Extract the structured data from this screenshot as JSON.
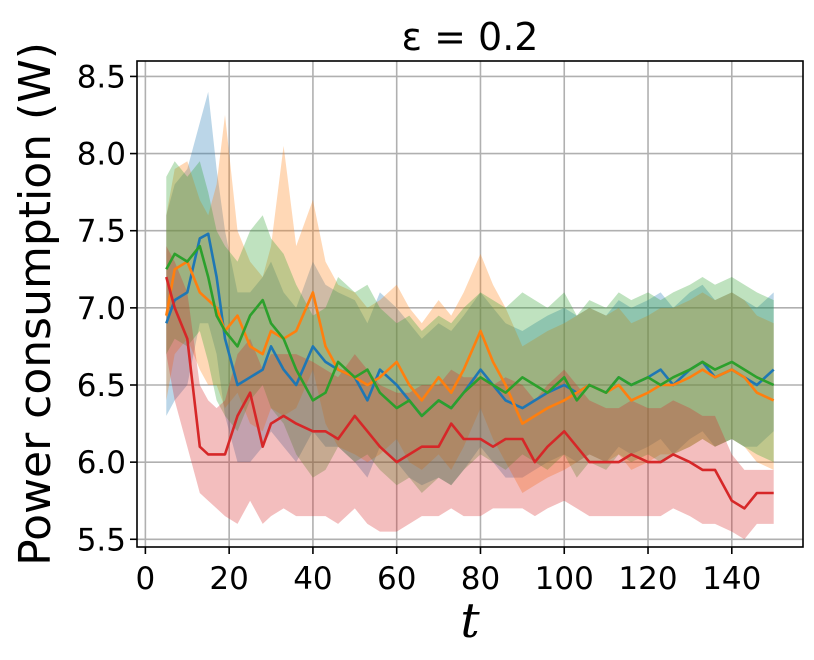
{
  "chart_data": {
    "type": "line",
    "title": "ε = 0.2",
    "xlabel": "t",
    "ylabel": "Power consumption (W)",
    "xlim": [
      -2,
      157
    ],
    "ylim": [
      5.45,
      8.6
    ],
    "xticks": [
      0,
      20,
      40,
      60,
      80,
      100,
      120,
      140
    ],
    "xtick_labels": [
      "0",
      "20",
      "40",
      "60",
      "80",
      "100",
      "120",
      "140"
    ],
    "yticks": [
      5.5,
      6.0,
      6.5,
      7.0,
      7.5,
      8.0,
      8.5
    ],
    "ytick_labels": [
      "5.5",
      "6.0",
      "6.5",
      "7.0",
      "7.5",
      "8.0",
      "8.5"
    ],
    "grid": true,
    "legend": "none",
    "shaded_bands": true,
    "band_opacity": 0.3,
    "x": [
      5,
      7,
      10,
      13,
      15,
      17,
      19,
      22,
      25,
      28,
      30,
      33,
      36,
      40,
      43,
      46,
      50,
      53,
      56,
      60,
      63,
      66,
      70,
      73,
      76,
      80,
      83,
      86,
      90,
      93,
      96,
      100,
      103,
      106,
      110,
      113,
      116,
      120,
      123,
      126,
      130,
      133,
      136,
      140,
      143,
      146,
      150
    ],
    "series": [
      {
        "color": "#1f77b4",
        "values": [
          6.9,
          7.05,
          7.1,
          7.45,
          7.48,
          7.2,
          6.8,
          6.5,
          6.55,
          6.6,
          6.75,
          6.6,
          6.5,
          6.75,
          6.65,
          6.6,
          6.55,
          6.4,
          6.6,
          6.5,
          6.4,
          6.3,
          6.4,
          6.35,
          6.45,
          6.6,
          6.5,
          6.4,
          6.35,
          6.4,
          6.45,
          6.5,
          6.45,
          6.5,
          6.45,
          6.55,
          6.5,
          6.55,
          6.6,
          6.5,
          6.6,
          6.65,
          6.55,
          6.6,
          6.55,
          6.5,
          6.6
        ],
        "lower": [
          6.3,
          6.4,
          6.5,
          6.9,
          6.9,
          6.7,
          6.3,
          6.0,
          6.0,
          6.1,
          6.2,
          6.1,
          6.0,
          6.2,
          6.1,
          6.1,
          6.0,
          5.9,
          6.1,
          6.0,
          5.9,
          5.85,
          5.9,
          5.85,
          5.95,
          6.1,
          6.0,
          5.9,
          5.9,
          5.95,
          6.0,
          6.05,
          6.0,
          6.05,
          6.0,
          6.1,
          6.05,
          6.1,
          6.15,
          6.05,
          6.15,
          6.2,
          6.1,
          6.15,
          6.1,
          6.1,
          6.2
        ],
        "upper": [
          7.6,
          7.8,
          7.9,
          8.2,
          8.4,
          7.9,
          7.5,
          7.1,
          7.1,
          7.2,
          7.3,
          7.1,
          7.0,
          7.3,
          7.15,
          7.1,
          7.05,
          6.9,
          7.1,
          7.0,
          6.9,
          6.8,
          6.9,
          6.85,
          6.95,
          7.1,
          7.0,
          6.9,
          6.85,
          6.9,
          6.95,
          7.0,
          6.95,
          7.0,
          6.95,
          7.05,
          7.0,
          7.05,
          7.1,
          7.0,
          7.1,
          7.15,
          7.05,
          7.1,
          7.05,
          7.0,
          7.1
        ]
      },
      {
        "color": "#ff7f0e",
        "values": [
          6.95,
          7.25,
          7.3,
          7.1,
          7.05,
          7.0,
          6.85,
          6.95,
          6.75,
          6.7,
          6.85,
          6.8,
          6.85,
          7.1,
          6.75,
          6.6,
          6.55,
          6.5,
          6.55,
          6.65,
          6.5,
          6.4,
          6.55,
          6.45,
          6.6,
          6.85,
          6.65,
          6.5,
          6.25,
          6.3,
          6.35,
          6.4,
          6.45,
          6.5,
          6.45,
          6.5,
          6.4,
          6.45,
          6.5,
          6.5,
          6.55,
          6.6,
          6.55,
          6.6,
          6.55,
          6.45,
          6.4
        ],
        "lower": [
          6.4,
          6.7,
          6.8,
          6.6,
          6.5,
          6.5,
          6.35,
          6.45,
          6.25,
          6.2,
          6.35,
          6.3,
          6.35,
          6.6,
          6.25,
          6.1,
          6.05,
          6.0,
          6.05,
          6.15,
          6.0,
          5.95,
          6.05,
          5.95,
          6.1,
          6.35,
          6.15,
          6.0,
          5.8,
          5.85,
          5.9,
          5.95,
          6.0,
          6.05,
          6.0,
          6.05,
          5.95,
          6.0,
          6.05,
          6.05,
          6.1,
          6.15,
          6.1,
          6.15,
          6.1,
          6.0,
          5.95
        ],
        "upper": [
          7.6,
          7.9,
          7.95,
          7.7,
          7.6,
          7.8,
          8.25,
          7.5,
          7.3,
          7.2,
          7.4,
          8.05,
          7.4,
          7.7,
          7.3,
          7.15,
          7.1,
          7.0,
          7.05,
          7.15,
          7.0,
          6.9,
          7.05,
          6.95,
          7.1,
          7.35,
          7.15,
          7.0,
          6.75,
          6.8,
          6.85,
          6.9,
          6.95,
          7.0,
          6.95,
          7.0,
          6.9,
          6.95,
          7.0,
          7.0,
          7.05,
          7.1,
          7.05,
          7.1,
          7.05,
          6.95,
          6.9
        ]
      },
      {
        "color": "#2ca02c",
        "values": [
          7.25,
          7.35,
          7.3,
          7.4,
          7.2,
          6.95,
          6.85,
          6.75,
          6.95,
          7.05,
          6.9,
          6.8,
          6.6,
          6.4,
          6.45,
          6.65,
          6.55,
          6.6,
          6.45,
          6.35,
          6.4,
          6.3,
          6.4,
          6.35,
          6.45,
          6.55,
          6.5,
          6.45,
          6.55,
          6.5,
          6.45,
          6.55,
          6.4,
          6.5,
          6.45,
          6.55,
          6.5,
          6.55,
          6.5,
          6.55,
          6.6,
          6.65,
          6.6,
          6.65,
          6.6,
          6.55,
          6.5
        ],
        "lower": [
          6.7,
          6.8,
          6.75,
          6.85,
          6.65,
          6.4,
          6.3,
          6.2,
          6.4,
          6.5,
          6.35,
          6.25,
          6.05,
          5.9,
          5.95,
          6.1,
          6.0,
          6.05,
          5.95,
          5.85,
          5.9,
          5.8,
          5.9,
          5.85,
          5.95,
          6.05,
          6.0,
          5.95,
          6.05,
          6.0,
          5.95,
          6.05,
          5.9,
          6.0,
          5.95,
          6.05,
          6.0,
          6.05,
          6.0,
          6.05,
          6.1,
          6.15,
          6.1,
          6.15,
          6.1,
          6.05,
          6.0
        ],
        "upper": [
          7.85,
          7.95,
          7.85,
          7.95,
          7.75,
          7.5,
          7.4,
          7.3,
          7.5,
          7.6,
          7.45,
          7.35,
          7.15,
          6.95,
          7.0,
          7.2,
          7.1,
          7.15,
          7.0,
          6.9,
          6.95,
          6.85,
          6.95,
          6.9,
          7.0,
          7.1,
          7.05,
          7.0,
          7.1,
          7.05,
          7.0,
          7.1,
          6.95,
          7.05,
          7.0,
          7.1,
          7.05,
          7.1,
          7.05,
          7.1,
          7.15,
          7.2,
          7.15,
          7.2,
          7.15,
          7.1,
          7.05
        ]
      },
      {
        "color": "#d62728",
        "values": [
          7.2,
          7.0,
          6.8,
          6.1,
          6.05,
          6.05,
          6.05,
          6.3,
          6.45,
          6.1,
          6.25,
          6.3,
          6.25,
          6.2,
          6.2,
          6.15,
          6.3,
          6.2,
          6.1,
          6.0,
          6.05,
          6.1,
          6.1,
          6.25,
          6.15,
          6.15,
          6.1,
          6.15,
          6.15,
          6.0,
          6.1,
          6.2,
          6.1,
          6.0,
          6.0,
          6.0,
          6.05,
          6.0,
          6.0,
          6.05,
          6.0,
          5.95,
          5.95,
          5.75,
          5.7,
          5.8,
          5.8
        ],
        "lower": [
          6.7,
          6.4,
          6.1,
          5.8,
          5.75,
          5.7,
          5.65,
          5.6,
          5.75,
          5.6,
          5.65,
          5.7,
          5.65,
          5.65,
          5.65,
          5.6,
          5.7,
          5.6,
          5.55,
          5.55,
          5.6,
          5.65,
          5.65,
          5.7,
          5.65,
          5.65,
          5.7,
          5.7,
          5.7,
          5.65,
          5.7,
          5.75,
          5.7,
          5.65,
          5.65,
          5.65,
          5.65,
          5.65,
          5.65,
          5.7,
          5.65,
          5.6,
          5.6,
          5.55,
          5.5,
          5.6,
          5.6
        ],
        "upper": [
          7.4,
          7.3,
          7.1,
          6.5,
          6.4,
          6.35,
          6.4,
          6.7,
          6.8,
          6.6,
          6.7,
          6.7,
          6.7,
          6.65,
          6.6,
          6.55,
          6.7,
          6.6,
          6.5,
          6.45,
          6.45,
          6.5,
          6.5,
          6.6,
          6.55,
          6.55,
          6.5,
          6.55,
          6.5,
          6.4,
          6.5,
          6.6,
          6.5,
          6.4,
          6.35,
          6.35,
          6.4,
          6.35,
          6.35,
          6.4,
          6.35,
          6.3,
          6.3,
          6.05,
          5.95,
          5.95,
          5.95
        ]
      }
    ]
  }
}
